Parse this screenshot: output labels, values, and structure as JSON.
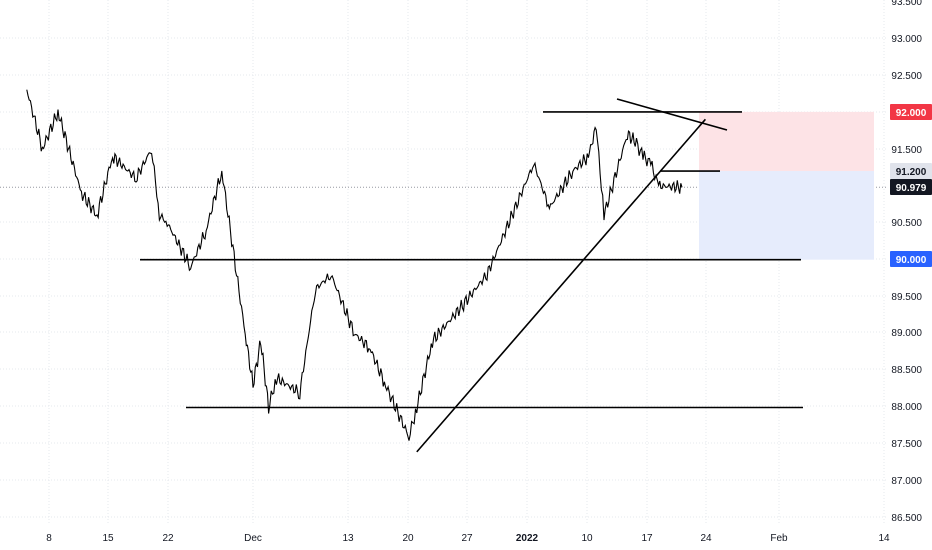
{
  "chart_data": {
    "type": "line",
    "title": "",
    "xlabel": "",
    "ylabel": "",
    "ylim": [
      86.3,
      93.58
    ],
    "grid": true,
    "y_ticks": [
      "93.500",
      "93.000",
      "92.500",
      "92.000",
      "91.500",
      "91.200",
      "90.979",
      "90.500",
      "90.000",
      "89.500",
      "89.000",
      "88.500",
      "88.000",
      "87.500",
      "87.000",
      "86.500"
    ],
    "x_ticks": [
      "8",
      "15",
      "22",
      "Dec",
      "13",
      "20",
      "27",
      "2022",
      "10",
      "17",
      "24",
      "Feb",
      "14"
    ],
    "series": [
      {
        "x": [
          "Nov 1",
          "Nov 3",
          "Nov 5",
          "Nov 8",
          "Nov 10",
          "Nov 12",
          "Nov 15",
          "Nov 17",
          "Nov 18",
          "Nov 19",
          "Nov 22",
          "Nov 24",
          "Nov 26",
          "Nov 29",
          "Nov 30",
          "Dec 1",
          "Dec 2",
          "Dec 3",
          "Dec 6",
          "Dec 8",
          "Dec 10",
          "Dec 13",
          "Dec 15",
          "Dec 17",
          "Dec 20",
          "Dec 21",
          "Dec 23",
          "Dec 27",
          "Dec 30",
          "Jan 3",
          "Jan 5",
          "Jan 7",
          "Jan 10",
          "Jan 12",
          "Jan 13",
          "Jan 14",
          "Jan 17",
          "Jan 18",
          "Jan 19",
          "Jan 20",
          "Jan 21",
          "Jan 24"
        ],
        "values": [
          92.3,
          91.5,
          92.0,
          90.9,
          90.6,
          91.4,
          91.1,
          91.5,
          90.6,
          90.5,
          89.9,
          90.4,
          91.2,
          89.0,
          88.3,
          88.9,
          88.0,
          88.4,
          88.2,
          89.6,
          89.8,
          89.0,
          88.8,
          88.3,
          87.6,
          88.0,
          88.9,
          89.4,
          89.8,
          90.8,
          91.3,
          90.7,
          91.2,
          91.4,
          91.8,
          90.6,
          91.7,
          91.6,
          91.4,
          91.3,
          91.0,
          90.98
        ]
      }
    ],
    "annotations": {
      "horizontal_levels": [
        92.0,
        91.2,
        90.0,
        88.0
      ],
      "trendline_from": [
        "Dec 21",
        87.4
      ],
      "trendline_to": [
        "Jan 27",
        91.9
      ],
      "short_position": {
        "stop": 92.0,
        "entry": 91.2,
        "target": 90.0
      }
    },
    "price_labels": {
      "stop": "92.000",
      "entry": "91.200",
      "current": "90.979",
      "target": "90.000"
    },
    "colors": {
      "price_line": "#000000",
      "stop_zone": "#fde3e6",
      "target_zone": "#e6ecfc",
      "stop_badge": "#f23645",
      "target_badge": "#2962ff",
      "current_badge": "#131722",
      "entry_badge": "#e0e3eb"
    }
  }
}
